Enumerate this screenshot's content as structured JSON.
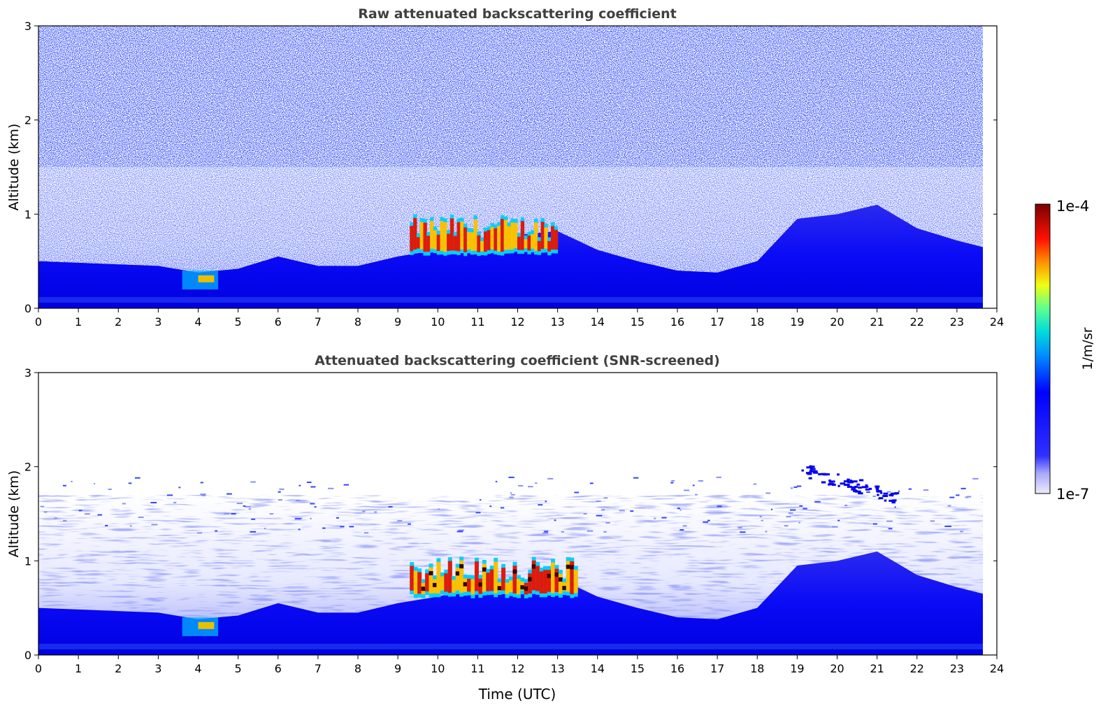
{
  "chart_data": [
    {
      "type": "heatmap",
      "title": "Raw attenuated backscattering coefficient",
      "xlabel": "",
      "ylabel": "Altitude (km)",
      "xlim": [
        0,
        24
      ],
      "ylim": [
        0,
        3
      ],
      "xticks": [
        "0",
        "1",
        "2",
        "3",
        "4",
        "5",
        "6",
        "7",
        "8",
        "9",
        "10",
        "11",
        "12",
        "13",
        "14",
        "15",
        "16",
        "17",
        "18",
        "19",
        "20",
        "21",
        "22",
        "23",
        "24"
      ],
      "yticks": [
        "0",
        "1",
        "2",
        "3"
      ],
      "data_end_time": 23.65,
      "features": [
        {
          "kind": "boundary_layer_top",
          "time": [
            0,
            3,
            4,
            5,
            6,
            7,
            8,
            9,
            10,
            11,
            12,
            13,
            14,
            15,
            16,
            17,
            18,
            19,
            20,
            21,
            22,
            23,
            23.65
          ],
          "altitude_km": [
            0.5,
            0.45,
            0.38,
            0.42,
            0.55,
            0.45,
            0.45,
            0.55,
            0.62,
            0.72,
            0.78,
            0.82,
            0.62,
            0.5,
            0.4,
            0.38,
            0.5,
            0.95,
            1.0,
            1.1,
            0.85,
            0.72,
            0.65
          ]
        },
        {
          "kind": "high_backscatter_layer",
          "time_start": 9.3,
          "time_end": 13.0,
          "altitude_km": [
            0.55,
            1.0
          ]
        },
        {
          "kind": "aerosol_patch",
          "time_start": 3.6,
          "time_end": 4.5,
          "altitude_km": [
            0.2,
            0.4
          ]
        }
      ]
    },
    {
      "type": "heatmap",
      "title": "Attenuated backscattering coefficient (SNR-screened)",
      "xlabel": "Time (UTC)",
      "ylabel": "Altitude (km)",
      "xlim": [
        0,
        24
      ],
      "ylim": [
        0,
        3
      ],
      "xticks": [
        "0",
        "1",
        "2",
        "3",
        "4",
        "5",
        "6",
        "7",
        "8",
        "9",
        "10",
        "11",
        "12",
        "13",
        "14",
        "15",
        "16",
        "17",
        "18",
        "19",
        "20",
        "21",
        "22",
        "23",
        "24"
      ],
      "yticks": [
        "0",
        "1",
        "2",
        "3"
      ],
      "data_end_time": 23.65,
      "features": [
        {
          "kind": "boundary_layer_top",
          "time": [
            0,
            3,
            4,
            5,
            6,
            7,
            8,
            9,
            10,
            11,
            12,
            13,
            14,
            15,
            16,
            17,
            18,
            19,
            20,
            21,
            22,
            23,
            23.65
          ],
          "altitude_km": [
            0.5,
            0.45,
            0.38,
            0.42,
            0.55,
            0.45,
            0.45,
            0.55,
            0.62,
            0.72,
            0.78,
            0.82,
            0.62,
            0.5,
            0.4,
            0.38,
            0.5,
            0.95,
            1.0,
            1.1,
            0.85,
            0.72,
            0.65
          ]
        },
        {
          "kind": "cloud_layer",
          "time_start": 9.3,
          "time_end": 13.5,
          "altitude_km": [
            0.6,
            1.05
          ]
        },
        {
          "kind": "elevated_layer",
          "time_start": 19.1,
          "time_end": 21.5,
          "altitude_km": [
            1.7,
            2.05
          ]
        },
        {
          "kind": "aerosol_patch",
          "time_start": 3.6,
          "time_end": 4.5,
          "altitude_km": [
            0.2,
            0.4
          ]
        }
      ]
    }
  ],
  "colorbar": {
    "max_label": "1e-4",
    "min_label": "1e-7",
    "unit_label": "1/m/sr",
    "scale": "log",
    "colormap": "jet",
    "colors": [
      "#e8e8f8",
      "#a0a0ff",
      "#0000ff",
      "#00a0ff",
      "#00e0e0",
      "#80ff80",
      "#ffff00",
      "#ff8000",
      "#ff0000",
      "#800000"
    ]
  }
}
